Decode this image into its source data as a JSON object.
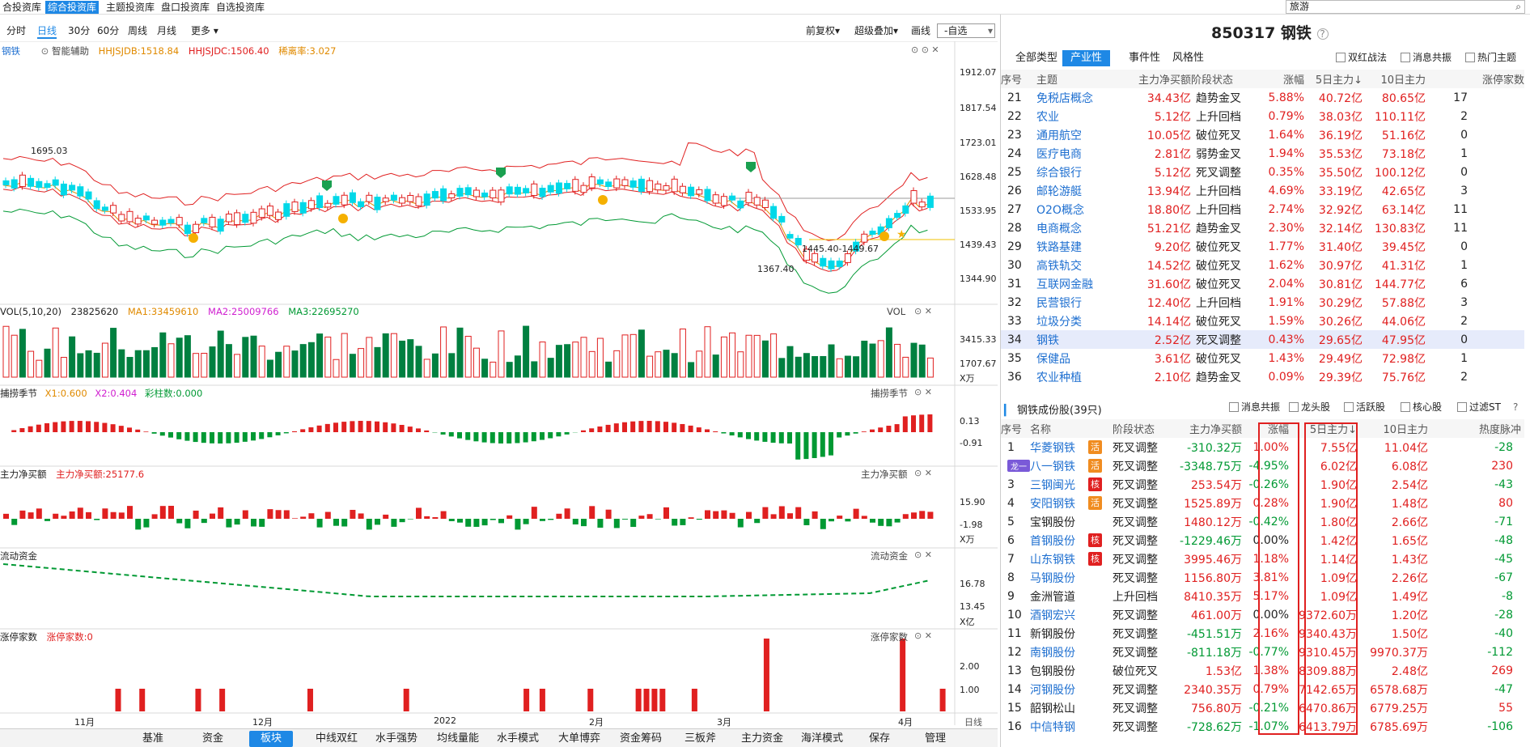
{
  "top_tabs": [
    "合投资库",
    "综合投资库",
    "主题投资库",
    "盘口投资库",
    "自选投资库"
  ],
  "search_value": "旅游",
  "periods": [
    "分时",
    "日线",
    "30分",
    "60分",
    "周线",
    "月线",
    "更多"
  ],
  "period_right": [
    "前复权",
    "超级叠加",
    "画线"
  ],
  "selector_value": "-自选",
  "main": {
    "name": "钢铁",
    "assist": "智能辅助",
    "hhjsjdb": "HHJSJDB:1518.84",
    "hhjsjdc": "HHJSJDC:1506.40",
    "xi": "稀离率:3.027",
    "yaxis": [
      "1912.07",
      "1817.54",
      "1723.01",
      "1628.48",
      "1533.95",
      "1439.43",
      "1344.90"
    ],
    "annotations": [
      "1695.03",
      "1445.40-1449.67",
      "1367.40"
    ]
  },
  "vol": {
    "title": "VOL(5,10,20)",
    "value": "23825620",
    "ma1": "MA1:33459610",
    "ma2": "MA2:25009766",
    "ma3": "MA3:22695270",
    "label": "VOL",
    "yaxis": [
      "3415.33",
      "1707.67"
    ],
    "unit": "X万"
  },
  "season": {
    "title": "捕捞季节",
    "x1": "X1:0.600",
    "x2": "X2:0.404",
    "cz": "彩柱数:0.000",
    "label": "捕捞季节",
    "yaxis": [
      "0.13",
      "-0.91"
    ]
  },
  "netbuy": {
    "title": "主力净买额",
    "value": "主力净买额:25177.6",
    "label": "主力净买额",
    "yaxis": [
      "15.90",
      "-1.98"
    ],
    "unit": "X万"
  },
  "liquid": {
    "title": "流动资金",
    "label": "流动资金",
    "yaxis": [
      "16.78",
      "13.45"
    ],
    "unit": "X亿"
  },
  "limit": {
    "title": "涨停家数",
    "value": "涨停家数:0",
    "label": "涨停家数",
    "yaxis": [
      "2.00",
      "1.00"
    ]
  },
  "xaxis": [
    "11月",
    "12月",
    "2022",
    "2月",
    "3月",
    "4月"
  ],
  "xaxis_right": "日线",
  "bottom_tabs": [
    "基准",
    "资金",
    "板块",
    "中线双红",
    "水手强势",
    "均线量能",
    "水手模式",
    "大单博弈",
    "资金筹码",
    "三板斧",
    "主力资金",
    "海洋模式",
    "保存",
    "管理"
  ],
  "bottom_active": "板块",
  "right_title": "850317 钢铁",
  "cat_tabs": [
    "全部类型",
    "产业性",
    "事件性",
    "风格性"
  ],
  "cat_active": "产业性",
  "cat_filters": [
    "双红战法",
    "消息共振",
    "热门主题"
  ],
  "theme_headers": [
    "序号",
    "主题",
    "主力净买额",
    "阶段状态",
    "涨幅",
    "5日主力↓",
    "10日主力",
    "涨停家数"
  ],
  "themes": [
    [
      "21",
      "免税店概念",
      "34.43亿",
      "趋势金叉",
      "5.88%",
      "40.72亿",
      "80.65亿",
      "17"
    ],
    [
      "22",
      "农业",
      "5.12亿",
      "上升回档",
      "0.79%",
      "38.03亿",
      "110.11亿",
      "2"
    ],
    [
      "23",
      "通用航空",
      "10.05亿",
      "破位死叉",
      "1.64%",
      "36.19亿",
      "51.16亿",
      "0"
    ],
    [
      "24",
      "医疗电商",
      "2.81亿",
      "弱势金叉",
      "1.94%",
      "35.53亿",
      "73.18亿",
      "1"
    ],
    [
      "25",
      "综合银行",
      "5.12亿",
      "死叉调整",
      "0.35%",
      "35.50亿",
      "100.12亿",
      "0"
    ],
    [
      "26",
      "邮轮游艇",
      "13.94亿",
      "上升回档",
      "4.69%",
      "33.19亿",
      "42.65亿",
      "3"
    ],
    [
      "27",
      "O2O概念",
      "18.80亿",
      "上升回档",
      "2.74%",
      "32.92亿",
      "63.14亿",
      "11"
    ],
    [
      "28",
      "电商概念",
      "51.21亿",
      "趋势金叉",
      "2.30%",
      "32.14亿",
      "130.83亿",
      "11"
    ],
    [
      "29",
      "铁路基建",
      "9.20亿",
      "破位死叉",
      "1.77%",
      "31.40亿",
      "39.45亿",
      "0"
    ],
    [
      "30",
      "高铁轨交",
      "14.52亿",
      "破位死叉",
      "1.62%",
      "30.97亿",
      "41.31亿",
      "1"
    ],
    [
      "31",
      "互联网金融",
      "31.60亿",
      "破位死叉",
      "2.04%",
      "30.81亿",
      "144.77亿",
      "6"
    ],
    [
      "32",
      "民营银行",
      "12.40亿",
      "上升回档",
      "1.91%",
      "30.29亿",
      "57.88亿",
      "3"
    ],
    [
      "33",
      "垃圾分类",
      "14.14亿",
      "破位死叉",
      "1.59%",
      "30.26亿",
      "44.06亿",
      "2"
    ],
    [
      "34",
      "钢铁",
      "2.52亿",
      "死叉调整",
      "0.43%",
      "29.65亿",
      "47.95亿",
      "0"
    ],
    [
      "35",
      "保健品",
      "3.61亿",
      "破位死叉",
      "1.43%",
      "29.49亿",
      "72.98亿",
      "1"
    ],
    [
      "36",
      "农业种植",
      "2.10亿",
      "趋势金叉",
      "0.09%",
      "29.39亿",
      "75.76亿",
      "2"
    ]
  ],
  "comp_title": "钢铁成份股(39只)",
  "comp_filters": [
    "消息共振",
    "龙头股",
    "活跃股",
    "核心股",
    "过滤ST"
  ],
  "comp_headers": [
    "序号",
    "名称",
    "阶段状态",
    "主力净买额",
    "涨幅",
    "5日主力↓",
    "10日主力",
    "热度脉冲"
  ],
  "stocks": [
    {
      "n": "1",
      "name": "华菱钢铁",
      "tag": "活",
      "tc": "o",
      "st": "死叉调整",
      "nb": "-310.32万",
      "chg": "1.00%",
      "d5": "7.55亿",
      "d10": "11.04亿",
      "heat": "-28",
      "lead": ""
    },
    {
      "n": "",
      "name": "八一钢铁",
      "tag": "活",
      "tc": "o",
      "st": "死叉调整",
      "nb": "-3348.75万",
      "chg": "-4.95%",
      "d5": "6.02亿",
      "d10": "6.08亿",
      "heat": "230",
      "lead": "龙一"
    },
    {
      "n": "3",
      "name": "三钢闽光",
      "tag": "核",
      "tc": "r",
      "st": "死叉调整",
      "nb": "253.54万",
      "chg": "-0.26%",
      "d5": "1.90亿",
      "d10": "2.54亿",
      "heat": "-43",
      "lead": ""
    },
    {
      "n": "4",
      "name": "安阳钢铁",
      "tag": "活",
      "tc": "o",
      "st": "死叉调整",
      "nb": "1525.89万",
      "chg": "0.28%",
      "d5": "1.90亿",
      "d10": "1.48亿",
      "heat": "80",
      "lead": ""
    },
    {
      "n": "5",
      "name": "宝钢股份",
      "tag": "",
      "tc": "",
      "st": "死叉调整",
      "nb": "1480.12万",
      "chg": "-0.42%",
      "d5": "1.80亿",
      "d10": "2.66亿",
      "heat": "-71",
      "lead": ""
    },
    {
      "n": "6",
      "name": "首钢股份",
      "tag": "核",
      "tc": "r",
      "st": "死叉调整",
      "nb": "-1229.46万",
      "chg": "0.00%",
      "d5": "1.42亿",
      "d10": "1.65亿",
      "heat": "-48",
      "lead": ""
    },
    {
      "n": "7",
      "name": "山东钢铁",
      "tag": "核",
      "tc": "r",
      "st": "死叉调整",
      "nb": "3995.46万",
      "chg": "1.18%",
      "d5": "1.14亿",
      "d10": "1.43亿",
      "heat": "-45",
      "lead": ""
    },
    {
      "n": "8",
      "name": "马钢股份",
      "tag": "",
      "tc": "",
      "st": "死叉调整",
      "nb": "1156.80万",
      "chg": "3.81%",
      "d5": "1.09亿",
      "d10": "2.26亿",
      "heat": "-67",
      "lead": ""
    },
    {
      "n": "9",
      "name": "金洲管道",
      "tag": "",
      "tc": "",
      "st": "上升回档",
      "nb": "8410.35万",
      "chg": "5.17%",
      "d5": "1.09亿",
      "d10": "1.49亿",
      "heat": "-8",
      "lead": ""
    },
    {
      "n": "10",
      "name": "酒钢宏兴",
      "tag": "",
      "tc": "",
      "st": "死叉调整",
      "nb": "461.00万",
      "chg": "0.00%",
      "d5": "9372.60万",
      "d10": "1.20亿",
      "heat": "-28",
      "lead": ""
    },
    {
      "n": "11",
      "name": "新钢股份",
      "tag": "",
      "tc": "",
      "st": "死叉调整",
      "nb": "-451.51万",
      "chg": "2.16%",
      "d5": "9340.43万",
      "d10": "1.50亿",
      "heat": "-40",
      "lead": ""
    },
    {
      "n": "12",
      "name": "南钢股份",
      "tag": "",
      "tc": "",
      "st": "死叉调整",
      "nb": "-811.18万",
      "chg": "-0.77%",
      "d5": "9310.45万",
      "d10": "9970.37万",
      "heat": "-112",
      "lead": ""
    },
    {
      "n": "13",
      "name": "包钢股份",
      "tag": "",
      "tc": "",
      "st": "破位死叉",
      "nb": "1.53亿",
      "chg": "1.38%",
      "d5": "8309.88万",
      "d10": "2.48亿",
      "heat": "269",
      "lead": ""
    },
    {
      "n": "14",
      "name": "河钢股份",
      "tag": "",
      "tc": "",
      "st": "死叉调整",
      "nb": "2340.35万",
      "chg": "0.79%",
      "d5": "7142.65万",
      "d10": "6578.68万",
      "heat": "-47",
      "lead": ""
    },
    {
      "n": "15",
      "name": "韶钢松山",
      "tag": "",
      "tc": "",
      "st": "死叉调整",
      "nb": "756.80万",
      "chg": "-0.21%",
      "d5": "6470.86万",
      "d10": "6779.25万",
      "heat": "55",
      "lead": ""
    },
    {
      "n": "16",
      "name": "中信特钢",
      "tag": "",
      "tc": "",
      "st": "死叉调整",
      "nb": "-728.62万",
      "chg": "-1.07%",
      "d5": "6413.79万",
      "d10": "6785.69万",
      "heat": "-106",
      "lead": ""
    }
  ],
  "colors": {
    "accent": "#1e88e5",
    "up": "#e02020",
    "down": "#009933",
    "cyan": "#00d8e8"
  }
}
